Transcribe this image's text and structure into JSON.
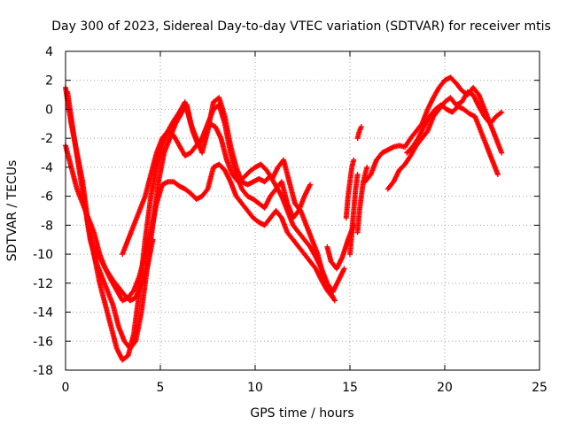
{
  "chart_data": {
    "type": "scatter",
    "title": "Day 300 of 2023, Sidereal Day-to-day VTEC variation (SDTVAR) for receiver mtis",
    "xlabel": "GPS time / hours",
    "ylabel": "SDTVAR / TECUs",
    "xlim": [
      0,
      25
    ],
    "ylim": [
      -18,
      4
    ],
    "x_ticks": [
      "0",
      "5",
      "10",
      "15",
      "20",
      "25"
    ],
    "y_ticks": [
      "4",
      "2",
      "0",
      "-2",
      "-4",
      "-6",
      "-8",
      "-10",
      "-12",
      "-14",
      "-16",
      "-18"
    ],
    "grid": true,
    "marker": "+",
    "color": "#ff0000",
    "series": [
      {
        "x": [
          0.0,
          0.3,
          0.6,
          0.9,
          1.2,
          1.5,
          1.8,
          2.1,
          2.4,
          2.7,
          3.0,
          3.3,
          3.6,
          3.9,
          4.2,
          4.5,
          4.8,
          5.1,
          5.4,
          5.7,
          6.0,
          6.3,
          6.6,
          6.9,
          7.2,
          7.5,
          7.8,
          8.1,
          8.4,
          8.7,
          9.0,
          9.3,
          9.6,
          9.9,
          10.2,
          10.5,
          10.8,
          11.1,
          11.4,
          11.7,
          12.0,
          12.3,
          12.6,
          12.9,
          13.2,
          13.5,
          13.8,
          14.1,
          14.4,
          14.7
        ],
        "y": [
          1.5,
          -1.0,
          -3.0,
          -5.0,
          -8.0,
          -10.0,
          -12.0,
          -13.5,
          -15.0,
          -16.5,
          -17.3,
          -17.0,
          -15.5,
          -12.5,
          -9.0,
          -6.0,
          -4.0,
          -2.5,
          -1.5,
          -0.8,
          -0.2,
          0.5,
          -1.0,
          -2.0,
          -3.0,
          -1.5,
          0.5,
          0.8,
          -0.5,
          -2.5,
          -4.0,
          -5.0,
          -5.2,
          -5.0,
          -4.8,
          -5.0,
          -4.6,
          -5.3,
          -6.0,
          -7.0,
          -8.0,
          -8.5,
          -9.0,
          -9.5,
          -10.2,
          -11.0,
          -12.0,
          -12.6,
          -11.8,
          -11.0
        ]
      },
      {
        "x": [
          0.1,
          0.4,
          0.7,
          1.0,
          1.3,
          1.6,
          1.9,
          2.2,
          2.5,
          2.8,
          3.1,
          3.4,
          3.7,
          4.0,
          4.3,
          4.6,
          4.9,
          5.2,
          5.5,
          5.8,
          6.1,
          6.4,
          6.7,
          7.0,
          7.3,
          7.6,
          7.9,
          8.2,
          8.5,
          8.8,
          9.1,
          9.4,
          9.7,
          10.0,
          10.3,
          10.6,
          10.9,
          11.2,
          11.5,
          11.8,
          12.1,
          12.4,
          12.7,
          13.0,
          13.3,
          13.6,
          13.9,
          14.2
        ],
        "y": [
          1.2,
          -1.5,
          -4.0,
          -6.5,
          -9.0,
          -10.5,
          -11.5,
          -12.5,
          -13.5,
          -15.0,
          -16.0,
          -16.5,
          -16.0,
          -14.0,
          -11.0,
          -8.0,
          -5.0,
          -3.0,
          -2.0,
          -1.0,
          -0.3,
          0.3,
          -1.5,
          -2.5,
          -1.8,
          -1.0,
          -1.2,
          -2.0,
          -3.5,
          -4.5,
          -5.0,
          -4.7,
          -4.3,
          -4.0,
          -3.8,
          -4.2,
          -4.8,
          -4.0,
          -3.5,
          -5.0,
          -6.5,
          -7.0,
          -8.0,
          -9.0,
          -10.0,
          -11.5,
          -12.5,
          -13.2
        ]
      },
      {
        "x": [
          0.0,
          0.3,
          0.6,
          0.9,
          1.2,
          1.5,
          1.8,
          2.1,
          2.4,
          2.7,
          3.0,
          3.3,
          3.6,
          3.9,
          4.2,
          4.5,
          4.8,
          5.1,
          5.4,
          5.7,
          6.0,
          6.3,
          6.6,
          6.9,
          7.2,
          7.5,
          7.8,
          8.1,
          8.4,
          8.7,
          9.0,
          9.3,
          9.6,
          9.9,
          10.2,
          10.5,
          10.8,
          11.1,
          11.4,
          11.7,
          12.0,
          12.3,
          12.6,
          12.9,
          13.2,
          13.5,
          13.8,
          14.1
        ],
        "y": [
          -2.5,
          -4.0,
          -5.5,
          -6.5,
          -7.5,
          -8.5,
          -10.0,
          -11.0,
          -11.8,
          -12.5,
          -13.2,
          -13.0,
          -12.5,
          -11.5,
          -10.0,
          -8.5,
          -6.5,
          -5.2,
          -5.0,
          -5.0,
          -5.3,
          -5.5,
          -5.8,
          -6.2,
          -6.0,
          -5.5,
          -4.0,
          -3.8,
          -4.2,
          -5.0,
          -6.0,
          -6.5,
          -7.0,
          -7.5,
          -7.8,
          -8.0,
          -7.5,
          -7.0,
          -7.5,
          -8.5,
          -9.0,
          -9.5,
          -10.0,
          -10.5,
          -11.0,
          -11.8,
          -12.5,
          -13.0
        ]
      },
      {
        "x": [
          1.6,
          1.9,
          2.2,
          2.5,
          2.8,
          3.1,
          3.4,
          3.7,
          4.0,
          4.3,
          4.6
        ],
        "y": [
          -9.5,
          -10.5,
          -11.2,
          -11.8,
          -12.3,
          -12.8,
          -13.2,
          -13.0,
          -12.0,
          -11.0,
          -9.0
        ]
      },
      {
        "x": [
          3.0,
          3.3,
          3.6,
          3.9,
          4.2,
          4.5,
          4.8,
          5.1,
          5.4,
          5.7,
          6.0,
          6.3,
          6.6,
          6.9,
          7.2,
          7.5,
          7.8,
          8.1,
          8.4,
          8.7,
          9.0,
          9.3,
          9.6,
          9.9,
          10.2,
          10.5,
          10.8,
          11.1,
          11.4,
          11.7,
          12.0,
          12.3,
          12.6,
          12.9
        ],
        "y": [
          -10.0,
          -9.0,
          -8.0,
          -7.0,
          -6.0,
          -4.5,
          -3.0,
          -2.0,
          -1.5,
          -1.8,
          -2.5,
          -3.2,
          -3.0,
          -2.5,
          -2.0,
          -1.0,
          0.0,
          0.3,
          -1.0,
          -3.0,
          -4.5,
          -5.5,
          -6.0,
          -6.2,
          -6.5,
          -6.8,
          -6.0,
          -5.5,
          -5.0,
          -6.5,
          -7.5,
          -7.0,
          -6.0,
          -5.2
        ]
      },
      {
        "x": [
          13.8,
          14.0,
          14.3,
          14.6,
          14.9,
          15.2
        ],
        "y": [
          -9.5,
          -10.5,
          -11.0,
          -10.2,
          -9.0,
          -8.0
        ]
      },
      {
        "x": [
          15.0,
          15.1,
          15.2,
          15.3,
          15.4
        ],
        "y": [
          -10.0,
          -8.5,
          -7.0,
          -5.5,
          -4.5
        ]
      },
      {
        "x": [
          15.4,
          15.5,
          15.6,
          15.7,
          15.8,
          15.9
        ],
        "y": [
          -8.5,
          -7.0,
          -6.0,
          -5.0,
          -4.5,
          -4.0
        ]
      },
      {
        "x": [
          14.8,
          14.9,
          15.0,
          15.1,
          15.2
        ],
        "y": [
          -7.5,
          -6.0,
          -5.0,
          -4.0,
          -3.5
        ]
      },
      {
        "x": [
          15.4,
          15.5,
          15.6
        ],
        "y": [
          -2.0,
          -1.5,
          -1.2
        ]
      },
      {
        "x": [
          15.8,
          16.1,
          16.4,
          16.7,
          17.0,
          17.3,
          17.6,
          17.9,
          18.2,
          18.5,
          18.8,
          19.1,
          19.4,
          19.7,
          20.0,
          20.3,
          20.6,
          20.9,
          21.2,
          21.5,
          21.8,
          22.1,
          22.4,
          22.7,
          23.0
        ],
        "y": [
          -5.0,
          -4.5,
          -3.5,
          -3.0,
          -2.8,
          -2.6,
          -2.5,
          -2.6,
          -2.0,
          -1.5,
          -1.0,
          0.0,
          0.8,
          1.5,
          2.0,
          2.2,
          1.8,
          1.3,
          1.0,
          1.5,
          1.0,
          0.0,
          -1.0,
          -2.0,
          -3.0
        ]
      },
      {
        "x": [
          17.0,
          17.3,
          17.6,
          17.9,
          18.2,
          18.5,
          18.8,
          19.1,
          19.4,
          19.7,
          20.0,
          20.3,
          20.6,
          20.9,
          21.2,
          21.5,
          21.8,
          22.1,
          22.4,
          22.7,
          23.0
        ],
        "y": [
          -5.5,
          -5.0,
          -4.2,
          -3.8,
          -3.2,
          -2.5,
          -2.0,
          -1.5,
          -0.5,
          0.0,
          0.5,
          0.8,
          0.3,
          0.5,
          1.2,
          1.0,
          0.2,
          -0.5,
          -1.0,
          -0.5,
          -0.2
        ]
      },
      {
        "x": [
          18.0,
          18.3,
          18.6,
          18.9,
          19.2,
          19.5,
          19.8,
          20.1,
          20.4,
          20.7,
          21.0,
          21.3,
          21.6,
          21.9,
          22.2,
          22.5,
          22.8
        ],
        "y": [
          -3.0,
          -2.6,
          -2.0,
          -1.2,
          -0.5,
          0.0,
          0.3,
          0.0,
          -0.2,
          0.2,
          0.0,
          -0.3,
          -0.5,
          -1.5,
          -2.5,
          -3.5,
          -4.5
        ]
      }
    ]
  }
}
